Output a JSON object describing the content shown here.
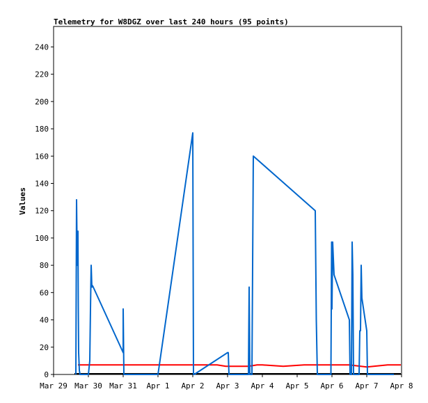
{
  "chart_data": {
    "type": "line",
    "title": "Telemetry for W8DGZ over last 240 hours (95 points)",
    "xlabel": "",
    "ylabel": "Values",
    "xlim": [
      0,
      10
    ],
    "ylim": [
      0,
      255
    ],
    "x_ticks": [
      "Mar 29",
      "Mar 30",
      "Mar 31",
      "Apr 1",
      "Apr 2",
      "Apr 3",
      "Apr 4",
      "Apr 5",
      "Apr 6",
      "Apr 7",
      "Apr 8"
    ],
    "y_ticks": [
      0,
      20,
      40,
      60,
      80,
      100,
      120,
      140,
      160,
      180,
      200,
      220,
      240
    ],
    "x_unit": "days since Mar 29 00:00",
    "colors": {
      "red_series": "#ff0000",
      "blue_series": "#0066cc",
      "black_series": "#000000"
    },
    "series": [
      {
        "key": "red",
        "name": "",
        "color": "#ff0000",
        "x": [
          0.7,
          1.1,
          1.35,
          2.0,
          3.0,
          3.5,
          4.0,
          4.7,
          4.95,
          5.6,
          5.85,
          6.0,
          6.6,
          7.2,
          7.8,
          8.0,
          8.5,
          9.0,
          9.2,
          9.6,
          9.98
        ],
        "y": [
          7,
          7,
          7,
          7,
          7,
          7,
          7,
          7,
          6,
          6,
          7,
          7,
          6,
          7,
          7,
          7,
          7,
          5.5,
          6,
          7,
          7
        ]
      },
      {
        "key": "black",
        "name": "",
        "color": "#000000",
        "x": [
          0.6,
          9.98
        ],
        "y": [
          0.5,
          0.5
        ]
      },
      {
        "key": "blue",
        "name": "",
        "color": "#0066cc",
        "x": [
          0.64,
          0.66,
          0.68,
          0.7,
          0.71,
          0.72,
          0.74,
          0.76,
          0.78,
          0.8,
          0.82,
          0.84,
          1.0,
          1.04,
          1.06,
          1.08,
          1.1,
          1.12,
          1.14,
          2.0,
          2.0,
          2.02,
          3.0,
          4.0,
          4.02,
          4.04,
          5.0,
          5.02,
          5.04,
          5.6,
          5.62,
          5.64,
          5.7,
          5.72,
          5.74,
          7.52,
          7.55,
          7.58,
          7.95,
          7.97,
          7.99,
          8.0,
          8.02,
          8.06,
          8.5,
          8.52,
          8.56,
          8.58,
          8.6,
          8.62,
          8.64,
          8.66,
          8.68,
          8.78,
          8.8,
          8.82,
          8.84,
          8.86,
          9.0,
          9.02,
          9.7,
          9.72,
          9.74,
          9.76,
          9.78
        ],
        "y": [
          0,
          128,
          80,
          105,
          49,
          16,
          3,
          0,
          0,
          0,
          0,
          0,
          0,
          10,
          48,
          80,
          64,
          65,
          64,
          16,
          48,
          0,
          0,
          177,
          0,
          0,
          16,
          16,
          0,
          0,
          64,
          0,
          0,
          80,
          160,
          120,
          40,
          0,
          0,
          0,
          97,
          48,
          97,
          73,
          40,
          0,
          0,
          97,
          73,
          0,
          0,
          0,
          0,
          0,
          32,
          32,
          80,
          56,
          32,
          0,
          0,
          0,
          0,
          0,
          0
        ]
      }
    ]
  }
}
